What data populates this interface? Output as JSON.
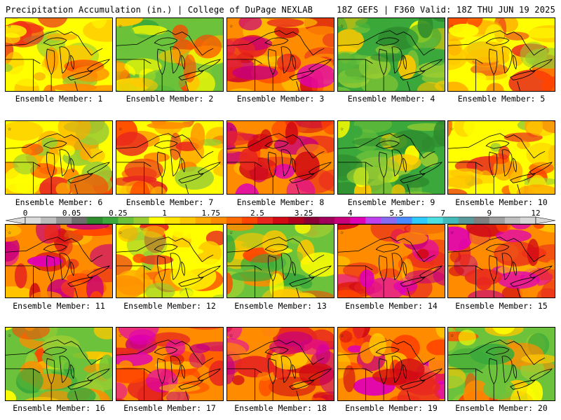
{
  "header": {
    "left": "Precipitation Accumulation (in.) | College of DuPage NEXLAB",
    "right": "18Z GEFS | F360 Valid: 18Z THU JUN 19 2025"
  },
  "colorbar": {
    "labels": [
      "0",
      "0.05",
      "0.25",
      "1",
      "1.75",
      "2.5",
      "3.25",
      "4",
      "5.5",
      "7",
      "9",
      "12"
    ],
    "colors": [
      "#dcdcdc",
      "#bdbdbd",
      "#969696",
      "#6e6e6e",
      "#2e8b2e",
      "#3aa83a",
      "#6cc23a",
      "#9acd32",
      "#ffff00",
      "#ffe500",
      "#ffc800",
      "#ffaa00",
      "#ff8c00",
      "#ff6a00",
      "#ff4500",
      "#e8281e",
      "#d10a14",
      "#b00020",
      "#8b0035",
      "#a0005a",
      "#c8007a",
      "#e000b4",
      "#c040f0",
      "#8a6af0",
      "#4a8cff",
      "#2ecbff",
      "#4ee0e0",
      "#44bbbb",
      "#5a9a9a",
      "#808080",
      "#a0a0a0",
      "#c0c0c0",
      "#d8d8d8"
    ]
  },
  "members": [
    {
      "label": "Ensemble Member: 1",
      "precip_tone": "mixed"
    },
    {
      "label": "Ensemble Member: 2",
      "precip_tone": "mixed-green"
    },
    {
      "label": "Ensemble Member: 3",
      "precip_tone": "wet"
    },
    {
      "label": "Ensemble Member: 4",
      "precip_tone": "green"
    },
    {
      "label": "Ensemble Member: 5",
      "precip_tone": "mixed"
    },
    {
      "label": "Ensemble Member: 6",
      "precip_tone": "mixed"
    },
    {
      "label": "Ensemble Member: 7",
      "precip_tone": "mixed"
    },
    {
      "label": "Ensemble Member: 8",
      "precip_tone": "wet"
    },
    {
      "label": "Ensemble Member: 9",
      "precip_tone": "green"
    },
    {
      "label": "Ensemble Member: 10",
      "precip_tone": "mixed"
    },
    {
      "label": "Ensemble Member: 11",
      "precip_tone": "wet"
    },
    {
      "label": "Ensemble Member: 12",
      "precip_tone": "mixed"
    },
    {
      "label": "Ensemble Member: 13",
      "precip_tone": "mixed-green"
    },
    {
      "label": "Ensemble Member: 14",
      "precip_tone": "wet"
    },
    {
      "label": "Ensemble Member: 15",
      "precip_tone": "wet"
    },
    {
      "label": "Ensemble Member: 16",
      "precip_tone": "mixed-green"
    },
    {
      "label": "Ensemble Member: 17",
      "precip_tone": "wet"
    },
    {
      "label": "Ensemble Member: 18",
      "precip_tone": "wet"
    },
    {
      "label": "Ensemble Member: 19",
      "precip_tone": "wet"
    },
    {
      "label": "Ensemble Member: 20",
      "precip_tone": "mixed-green"
    }
  ]
}
